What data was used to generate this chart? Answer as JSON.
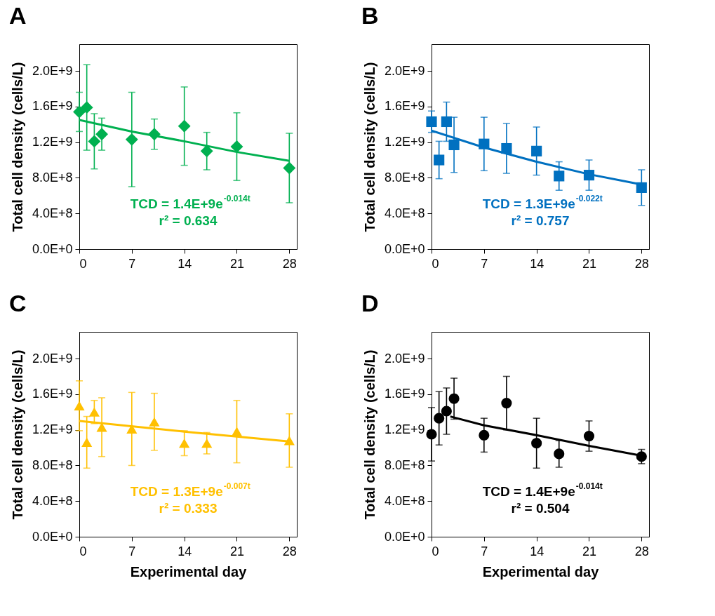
{
  "chart_data": [
    {
      "type": "scatter",
      "title": "A",
      "ylabel": "Total cell density (cells/L)",
      "xlim": [
        0,
        29
      ],
      "xticks": [
        0,
        7,
        14,
        21,
        28
      ],
      "ylim": [
        0,
        2300000000
      ],
      "yticks": [
        {
          "value": 0,
          "label": "0.0E+0"
        },
        {
          "value": 400000000,
          "label": "4.0E+8"
        },
        {
          "value": 800000000,
          "label": "8.0E+8"
        },
        {
          "value": 1200000000,
          "label": "1.2E+9"
        },
        {
          "value": 1600000000,
          "label": "1.6E+9"
        },
        {
          "value": 2000000000,
          "label": "2.0E+9"
        }
      ],
      "annotations": [
        "TCD = 1.4E+9e$^{-0.014t}$",
        "r² = 0.634"
      ],
      "series": [
        {
          "color": "#00b050",
          "marker": "diamond",
          "x": [
            0,
            1,
            2,
            3,
            7,
            10,
            14,
            17,
            21,
            28
          ],
          "values": [
            1540000000.0,
            1590000000.0,
            1210000000.0,
            1290000000.0,
            1230000000.0,
            1290000000.0,
            1380000000.0,
            1100000000.0,
            1150000000.0,
            910000000.0
          ],
          "errors": [
            220000000.0,
            480000000.0,
            310000000.0,
            180000000.0,
            530000000.0,
            170000000.0,
            440000000.0,
            210000000.0,
            380000000.0,
            390000000.0
          ]
        },
        {
          "type": "line",
          "color": "#00b050",
          "x": [
            0,
            7,
            14,
            21,
            28
          ],
          "values": [
            1450000000.0,
            1320000000.0,
            1210000000.0,
            1090000000.0,
            990000000.0
          ]
        }
      ]
    },
    {
      "type": "scatter",
      "title": "B",
      "ylabel": "Total cell density (cells/L)",
      "xlim": [
        0,
        29
      ],
      "xticks": [
        0,
        7,
        14,
        21,
        28
      ],
      "ylim": [
        0,
        2300000000
      ],
      "yticks": [
        {
          "value": 0,
          "label": "0.0E+0"
        },
        {
          "value": 400000000,
          "label": "4.0E+8"
        },
        {
          "value": 800000000,
          "label": "8.0E+8"
        },
        {
          "value": 1200000000,
          "label": "1.2E+9"
        },
        {
          "value": 1600000000,
          "label": "1.6E+9"
        },
        {
          "value": 2000000000,
          "label": "2.0E+9"
        }
      ],
      "annotations": [
        "TCD = 1.3E+9e$^{-0.022t}$",
        "r² = 0.757"
      ],
      "series": [
        {
          "color": "#0070c0",
          "marker": "square",
          "x": [
            0,
            1,
            2,
            3,
            7,
            10,
            14,
            17,
            21,
            28
          ],
          "values": [
            1430000000.0,
            1000000000.0,
            1430000000.0,
            1170000000.0,
            1180000000.0,
            1130000000.0,
            1100000000.0,
            820000000.0,
            830000000.0,
            690000000.0
          ],
          "errors": [
            120000000.0,
            210000000.0,
            220000000.0,
            310000000.0,
            300000000.0,
            280000000.0,
            270000000.0,
            160000000.0,
            170000000.0,
            200000000.0
          ]
        },
        {
          "type": "line",
          "color": "#0070c0",
          "x": [
            0,
            7,
            14,
            21,
            28
          ],
          "values": [
            1330000000.0,
            1140000000.0,
            980000000.0,
            840000000.0,
            725000000.0
          ]
        }
      ]
    },
    {
      "type": "scatter",
      "title": "C",
      "xlabel": "Experimental day",
      "ylabel": "Total cell density (cells/L)",
      "xlim": [
        0,
        29
      ],
      "xticks": [
        0,
        7,
        14,
        21,
        28
      ],
      "ylim": [
        0,
        2300000000
      ],
      "yticks": [
        {
          "value": 0,
          "label": "0.0E+0"
        },
        {
          "value": 400000000,
          "label": "4.0E+8"
        },
        {
          "value": 800000000,
          "label": "8.0E+8"
        },
        {
          "value": 1200000000,
          "label": "1.2E+9"
        },
        {
          "value": 1600000000,
          "label": "1.6E+9"
        },
        {
          "value": 2000000000,
          "label": "2.0E+9"
        }
      ],
      "annotations": [
        "TCD = 1.3E+9e$^{-0.007t}$",
        "r² = 0.333"
      ],
      "series": [
        {
          "color": "#ffc000",
          "marker": "triangle",
          "x": [
            0,
            1,
            2,
            3,
            7,
            10,
            14,
            17,
            21,
            28
          ],
          "values": [
            1470000000.0,
            1060000000.0,
            1400000000.0,
            1230000000.0,
            1210000000.0,
            1290000000.0,
            1050000000.0,
            1050000000.0,
            1180000000.0,
            1080000000.0
          ],
          "errors": [
            280000000.0,
            290000000.0,
            130000000.0,
            330000000.0,
            410000000.0,
            320000000.0,
            140000000.0,
            120000000.0,
            350000000.0,
            300000000.0
          ]
        },
        {
          "type": "line",
          "color": "#ffc000",
          "x": [
            0,
            14,
            28
          ],
          "values": [
            1300000000.0,
            1180000000.0,
            1070000000.0
          ]
        }
      ]
    },
    {
      "type": "scatter",
      "title": "D",
      "xlabel": "Experimental day",
      "ylabel": "Total cell density (cells/L)",
      "xlim": [
        0,
        29
      ],
      "xticks": [
        0,
        7,
        14,
        21,
        28
      ],
      "ylim": [
        0,
        2300000000
      ],
      "yticks": [
        {
          "value": 0,
          "label": "0.0E+0"
        },
        {
          "value": 400000000,
          "label": "4.0E+8"
        },
        {
          "value": 800000000,
          "label": "8.0E+8"
        },
        {
          "value": 1200000000,
          "label": "1.2E+9"
        },
        {
          "value": 1600000000,
          "label": "1.6E+9"
        },
        {
          "value": 2000000000,
          "label": "2.0E+9"
        }
      ],
      "annotations": [
        "TCD = 1.4E+9e$^{-0.014t}$",
        "r² = 0.504"
      ],
      "series": [
        {
          "color": "#000000",
          "marker": "circle",
          "x": [
            0,
            1,
            2,
            3,
            7,
            10,
            14,
            17,
            21,
            28
          ],
          "values": [
            1150000000.0,
            1330000000.0,
            1410000000.0,
            1550000000.0,
            1140000000.0,
            1500000000.0,
            1050000000.0,
            930000000.0,
            1130000000.0,
            900000000.0
          ],
          "errors": [
            300000000.0,
            300000000.0,
            260000000.0,
            230000000.0,
            190000000.0,
            300000000.0,
            280000000.0,
            150000000.0,
            170000000.0,
            80000000.0
          ]
        },
        {
          "type": "line",
          "color": "#000000",
          "x": [
            2.5,
            7,
            14,
            21,
            28
          ],
          "values": [
            1350000000.0,
            1250000000.0,
            1140000000.0,
            1020000000.0,
            910000000.0
          ]
        }
      ]
    }
  ]
}
